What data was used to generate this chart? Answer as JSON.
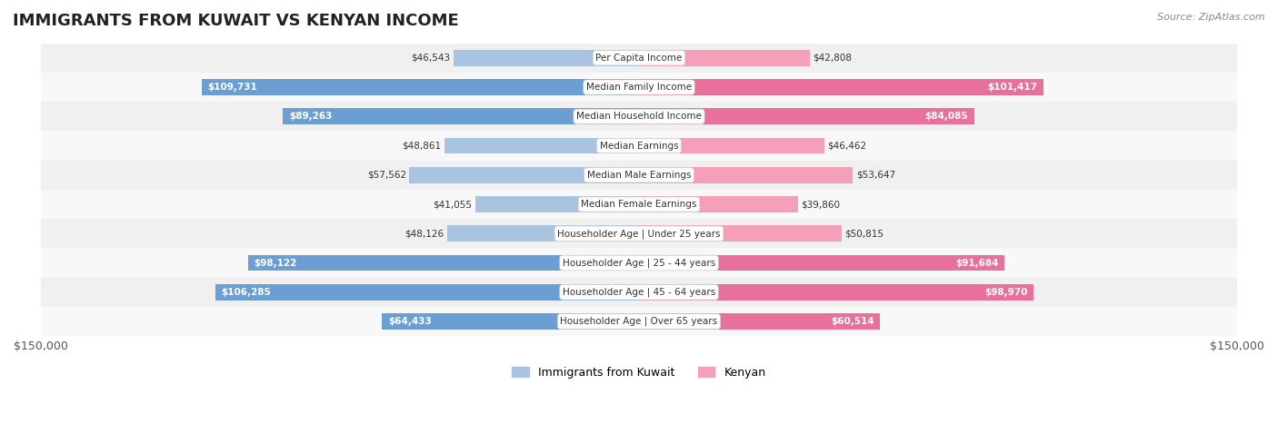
{
  "title": "IMMIGRANTS FROM KUWAIT VS KENYAN INCOME",
  "source": "Source: ZipAtlas.com",
  "categories": [
    "Per Capita Income",
    "Median Family Income",
    "Median Household Income",
    "Median Earnings",
    "Median Male Earnings",
    "Median Female Earnings",
    "Householder Age | Under 25 years",
    "Householder Age | 25 - 44 years",
    "Householder Age | 45 - 64 years",
    "Householder Age | Over 65 years"
  ],
  "kuwait_values": [
    46543,
    109731,
    89263,
    48861,
    57562,
    41055,
    48126,
    98122,
    106285,
    64433
  ],
  "kenyan_values": [
    42808,
    101417,
    84085,
    46462,
    53647,
    39860,
    50815,
    91684,
    98970,
    60514
  ],
  "kuwait_labels": [
    "$46,543",
    "$109,731",
    "$89,263",
    "$48,861",
    "$57,562",
    "$41,055",
    "$48,126",
    "$98,122",
    "$106,285",
    "$64,433"
  ],
  "kenyan_labels": [
    "$42,808",
    "$101,417",
    "$84,085",
    "$46,462",
    "$53,647",
    "$39,860",
    "$50,815",
    "$91,684",
    "$98,970",
    "$60,514"
  ],
  "kuwait_color": "#a8c4e0",
  "kuwait_color_dark": "#6fa8d4",
  "kenyan_color": "#f4a0b8",
  "kenyan_color_dark": "#e8608a",
  "max_value": 150000,
  "bar_height": 0.55,
  "row_bg_color": "#f0f0f0",
  "row_bg_alt": "#f8f8f8",
  "label_inside_threshold": 60000,
  "background_color": "#ffffff"
}
